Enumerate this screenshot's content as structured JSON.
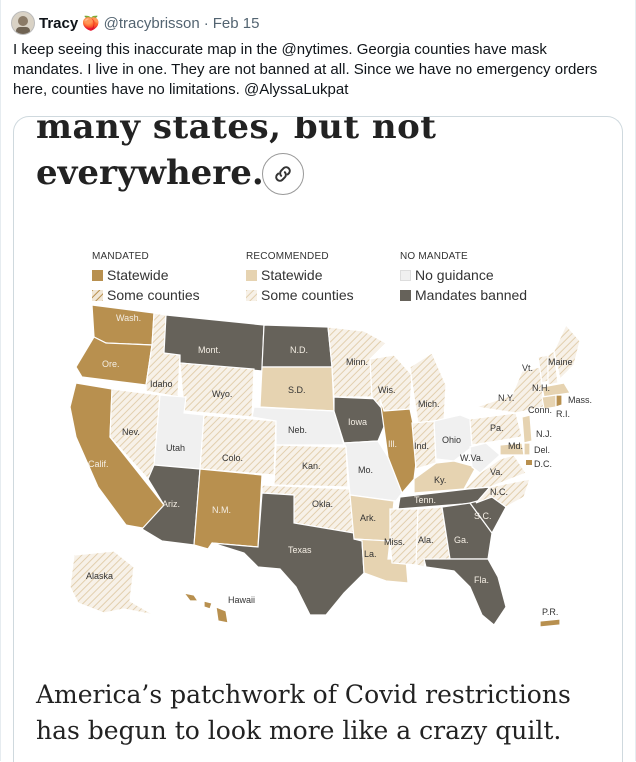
{
  "tweet": {
    "display_name": "Tracy",
    "emoji": "🍑",
    "handle": "@tracybrisson",
    "separator": "·",
    "date": "Feb 15",
    "text": "I keep seeing this inaccurate map in the @nytimes. Georgia counties have mask mandates. I live in one. They are not banned at all. Since we have no emergency orders here, counties have no limitations. @AlyssaLukpat"
  },
  "article": {
    "headline_line1": "many states, but not",
    "headline_line2": "everywhere.",
    "caption_line1": "America’s patchwork of Covid restrictions",
    "caption_line2": "has begun to look more like a crazy quilt."
  },
  "legend": {
    "mandated": {
      "title": "MANDATED",
      "statewide": "Statewide",
      "some": "Some counties"
    },
    "recommended": {
      "title": "RECOMMENDED",
      "statewide": "Statewide",
      "some": "Some counties"
    },
    "no_mandate": {
      "title": "NO MANDATE",
      "no_guidance": "No guidance",
      "banned": "Mandates banned"
    }
  },
  "colors": {
    "mandated_statewide": "#b8904f",
    "recommended_statewide": "#e6d3b1",
    "no_guidance": "#f0f0f0",
    "mandates_banned": "#66625a"
  },
  "state_labels": {
    "wash": "Wash.",
    "ore": "Ore.",
    "calif": "Calif.",
    "idaho": "Idaho",
    "nev": "Nev.",
    "mont": "Mont.",
    "wyo": "Wyo.",
    "utah": "Utah",
    "colo": "Colo.",
    "ariz": "Ariz.",
    "nm": "N.M.",
    "nd": "N.D.",
    "sd": "S.D.",
    "neb": "Neb.",
    "kan": "Kan.",
    "okla": "Okla.",
    "texas": "Texas",
    "minn": "Minn.",
    "iowa": "Iowa",
    "mo": "Mo.",
    "ark": "Ark.",
    "la": "La.",
    "wis": "Wis.",
    "ill": "Ill.",
    "mich": "Mich.",
    "ind": "Ind.",
    "ohio": "Ohio",
    "ky": "Ky.",
    "tenn": "Tenn.",
    "miss": "Miss.",
    "ala": "Ala.",
    "ga": "Ga.",
    "fla": "Fla.",
    "sc": "S.C.",
    "nc": "N.C.",
    "va": "Va.",
    "wva": "W.Va.",
    "pa": "Pa.",
    "ny": "N.Y.",
    "vt": "Vt.",
    "nh": "N.H.",
    "maine": "Maine",
    "mass": "Mass.",
    "ri": "R.I.",
    "conn": "Conn.",
    "nj": "N.J.",
    "md": "Md.",
    "del": "Del.",
    "dc": "D.C.",
    "alaska": "Alaska",
    "hawaii": "Hawaii",
    "pr": "P.R."
  }
}
